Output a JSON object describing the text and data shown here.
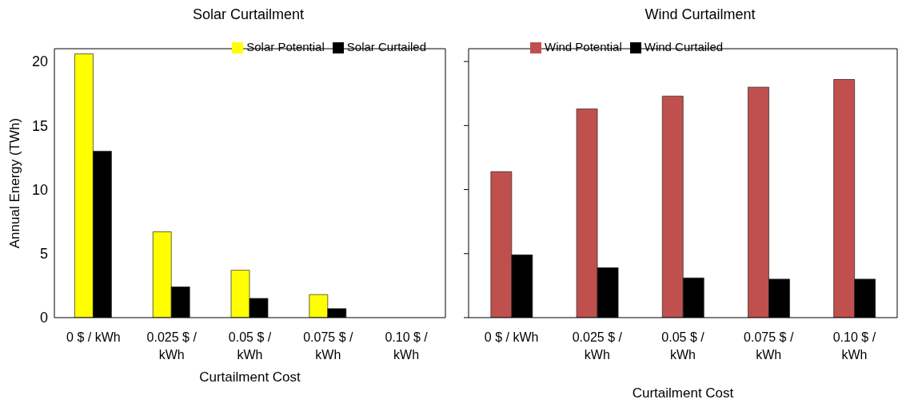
{
  "chart_data": [
    {
      "type": "bar",
      "title": "Solar Curtailment",
      "xlabel": "Curtailment Cost",
      "ylabel": "Annual Energy (TWh)",
      "categories": [
        "0 $ / kWh",
        "0.025 $ / kWh",
        "0.05 $ / kWh",
        "0.075 $ / kWh",
        "0.10 $ / kWh"
      ],
      "series": [
        {
          "name": "Solar Potential",
          "color": "#ffff00",
          "values": [
            20.6,
            6.7,
            3.7,
            1.8,
            0
          ]
        },
        {
          "name": "Solar Curtailed",
          "color": "#000000",
          "values": [
            13.0,
            2.4,
            1.5,
            0.7,
            0
          ]
        }
      ],
      "ylim": [
        0,
        21
      ],
      "yticks": [
        0,
        5,
        10,
        15,
        20
      ],
      "legend": "top right"
    },
    {
      "type": "bar",
      "title": "Wind Curtailment",
      "xlabel": "Curtailment Cost",
      "categories": [
        "0 $ / kWh",
        "0.025 $ / kWh",
        "0.05 $ / kWh",
        "0.075 $ / kWh",
        "0.10 $ / kWh"
      ],
      "series": [
        {
          "name": "Wind Potential",
          "color": "#c0504d",
          "values": [
            11.4,
            16.3,
            17.3,
            18.0,
            18.6
          ]
        },
        {
          "name": "Wind Curtailed",
          "color": "#000000",
          "values": [
            4.9,
            3.9,
            3.1,
            3.0,
            3.0
          ]
        }
      ],
      "ylim": [
        0,
        21
      ],
      "yticks": [
        {
          "value": 0,
          "label": null
        },
        {
          "value": 5,
          "label": null
        },
        {
          "value": 10,
          "label": null
        },
        {
          "value": 15,
          "label": null
        },
        {
          "value": 20,
          "label": null
        }
      ],
      "tick_labels": "x",
      "legend": "top left"
    }
  ]
}
